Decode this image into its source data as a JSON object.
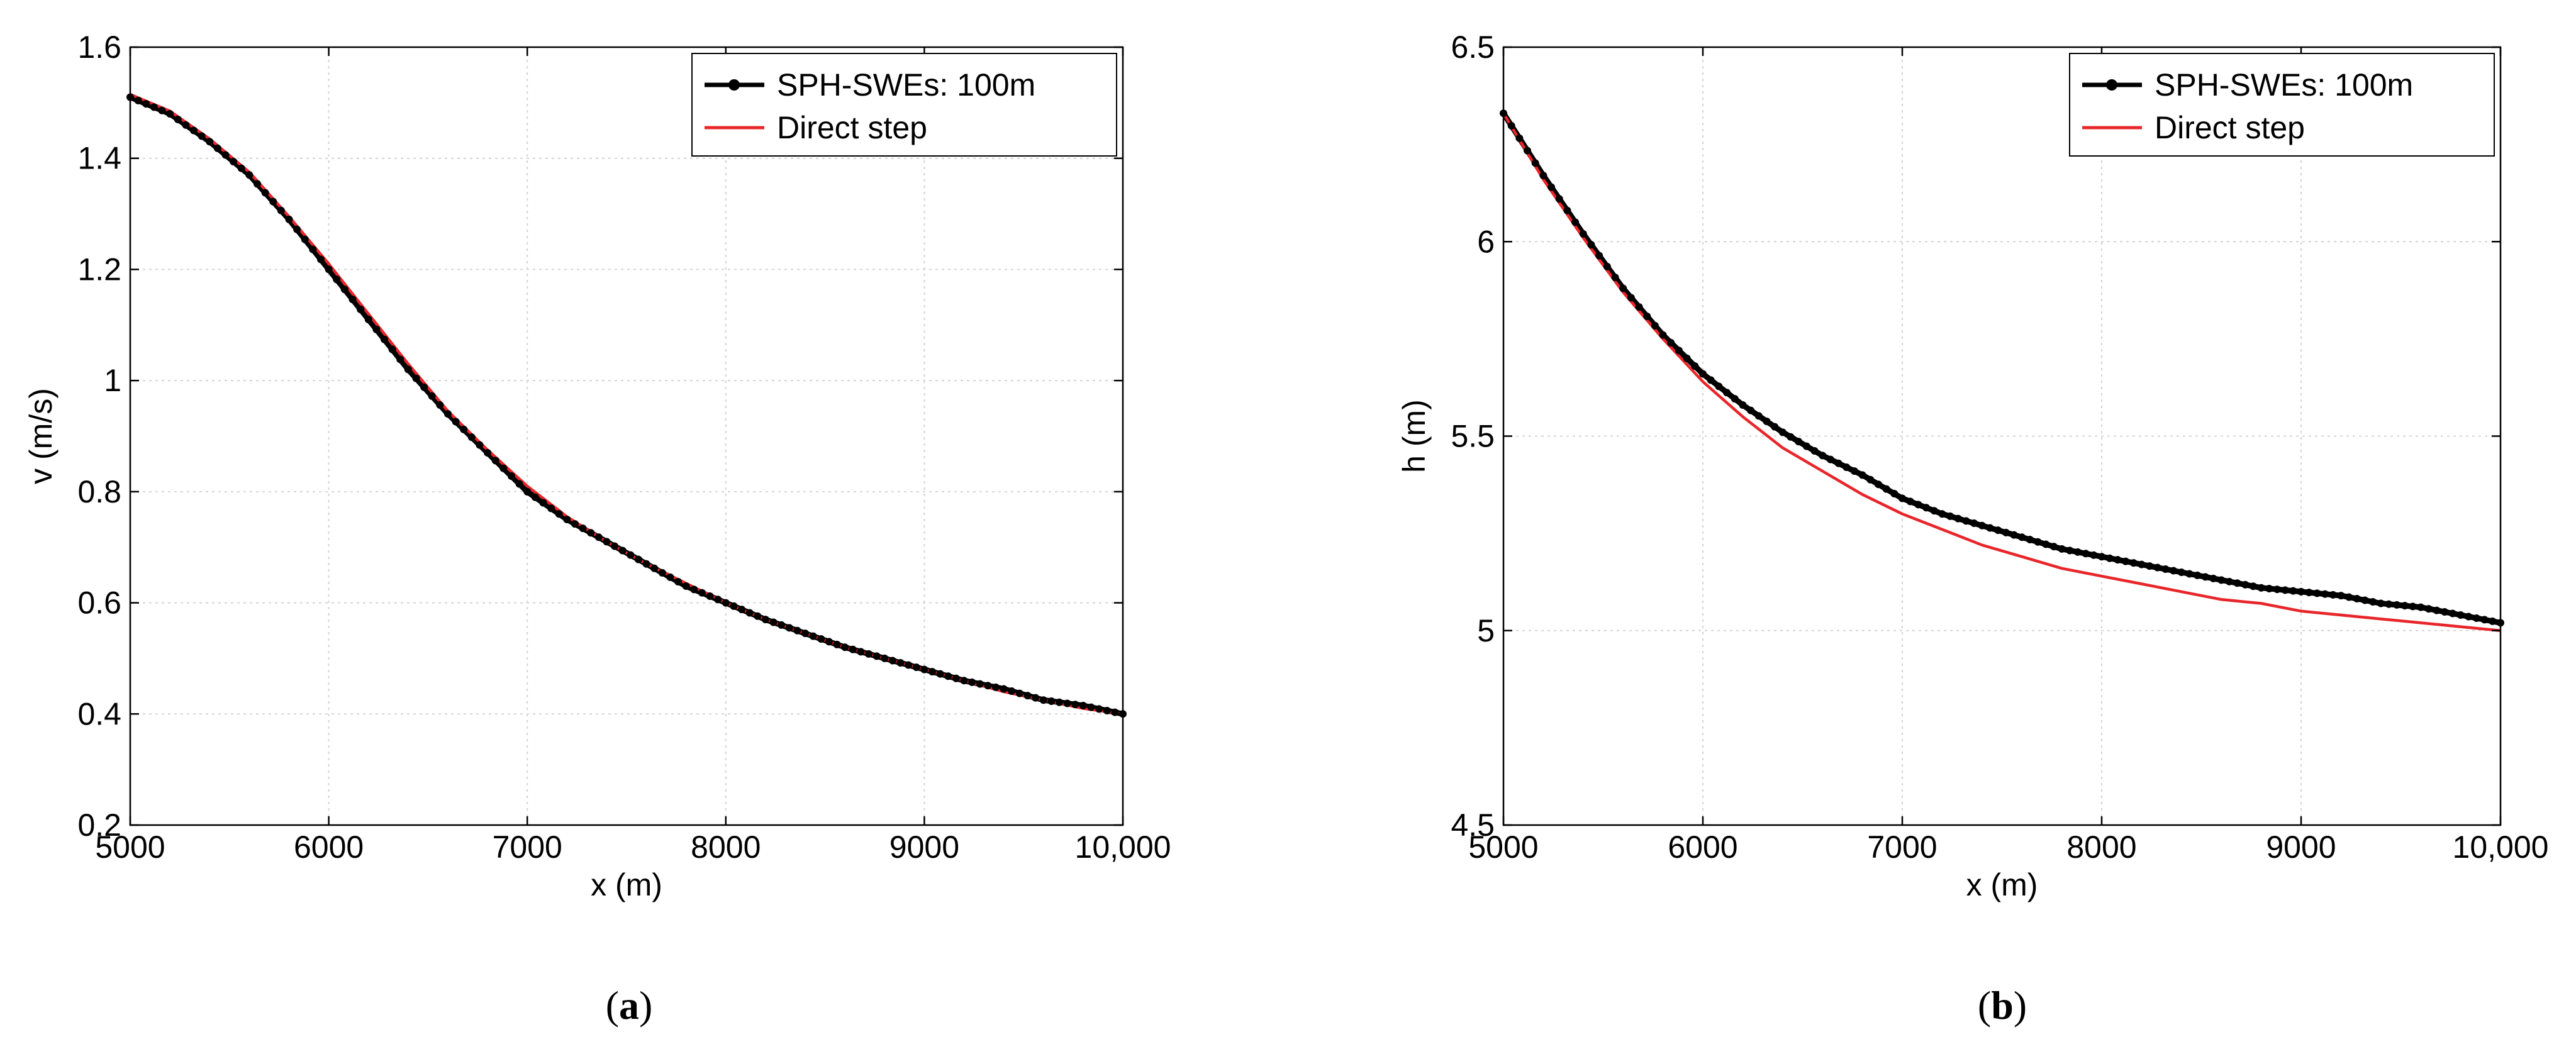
{
  "chart_data": [
    {
      "type": "line",
      "panel_label": "a",
      "xlabel": "x (m)",
      "ylabel": "v (m/s)",
      "xlim": [
        5000,
        10000
      ],
      "ylim": [
        0.2,
        1.6
      ],
      "xticks": [
        5000,
        6000,
        7000,
        8000,
        9000,
        10000
      ],
      "xtick_labels": [
        "5000",
        "6000",
        "7000",
        "8000",
        "9000",
        "10,000"
      ],
      "yticks": [
        0.2,
        0.4,
        0.6,
        0.8,
        1.0,
        1.2,
        1.4,
        1.6
      ],
      "ytick_labels": [
        "0.2",
        "0.4",
        "0.6",
        "0.8",
        "1",
        "1.2",
        "1.4",
        "1.6"
      ],
      "grid": true,
      "legend_position": "top-right",
      "series": [
        {
          "name": "SPH-SWEs: 100m",
          "color": "#000000",
          "marker": "dot",
          "x": [
            5000,
            5200,
            5400,
            5600,
            5800,
            6000,
            6200,
            6400,
            6600,
            6800,
            7000,
            7200,
            7400,
            7600,
            7800,
            8000,
            8200,
            8400,
            8600,
            8800,
            9000,
            9200,
            9400,
            9600,
            9800,
            10000
          ],
          "y": [
            1.51,
            1.48,
            1.43,
            1.37,
            1.29,
            1.2,
            1.11,
            1.02,
            0.94,
            0.87,
            0.8,
            0.75,
            0.71,
            0.67,
            0.63,
            0.6,
            0.57,
            0.545,
            0.52,
            0.5,
            0.48,
            0.46,
            0.445,
            0.425,
            0.415,
            0.4
          ]
        },
        {
          "name": "Direct step",
          "color": "#e8262a",
          "marker": "none",
          "x": [
            5000,
            5200,
            5400,
            5600,
            5800,
            6000,
            6200,
            6400,
            6600,
            6800,
            7000,
            7200,
            7400,
            7600,
            7800,
            8000,
            8200,
            8400,
            8600,
            8800,
            9000,
            9200,
            9400,
            9600,
            9800,
            10000
          ],
          "y": [
            1.515,
            1.485,
            1.435,
            1.375,
            1.295,
            1.21,
            1.12,
            1.03,
            0.945,
            0.875,
            0.81,
            0.755,
            0.71,
            0.67,
            0.635,
            0.6,
            0.57,
            0.545,
            0.52,
            0.5,
            0.48,
            0.46,
            0.44,
            0.425,
            0.41,
            0.4
          ]
        }
      ]
    },
    {
      "type": "line",
      "panel_label": "b",
      "xlabel": "x (m)",
      "ylabel": "h (m)",
      "xlim": [
        5000,
        10000
      ],
      "ylim": [
        4.5,
        6.5
      ],
      "xticks": [
        5000,
        6000,
        7000,
        8000,
        9000,
        10000
      ],
      "xtick_labels": [
        "5000",
        "6000",
        "7000",
        "8000",
        "9000",
        "10,000"
      ],
      "yticks": [
        4.5,
        5.0,
        5.5,
        6.0,
        6.5
      ],
      "ytick_labels": [
        "4.5",
        "5",
        "5.5",
        "6",
        "6.5"
      ],
      "grid": true,
      "legend_position": "top-right",
      "series": [
        {
          "name": "SPH-SWEs: 100m",
          "color": "#000000",
          "marker": "dot",
          "x": [
            5000,
            5200,
            5400,
            5600,
            5800,
            6000,
            6200,
            6400,
            6600,
            6800,
            7000,
            7200,
            7400,
            7600,
            7800,
            8000,
            8200,
            8400,
            8600,
            8800,
            9000,
            9200,
            9400,
            9600,
            9800,
            10000
          ],
          "y": [
            6.33,
            6.17,
            6.02,
            5.88,
            5.76,
            5.66,
            5.58,
            5.51,
            5.45,
            5.4,
            5.34,
            5.3,
            5.27,
            5.24,
            5.21,
            5.19,
            5.17,
            5.15,
            5.13,
            5.11,
            5.1,
            5.09,
            5.07,
            5.06,
            5.04,
            5.02
          ]
        },
        {
          "name": "Direct step",
          "color": "#e8262a",
          "marker": "none",
          "x": [
            5000,
            5200,
            5400,
            5600,
            5800,
            6000,
            6200,
            6400,
            6600,
            6800,
            7000,
            7200,
            7400,
            7600,
            7800,
            8000,
            8200,
            8400,
            8600,
            8800,
            9000,
            9200,
            9400,
            9600,
            9800,
            10000
          ],
          "y": [
            6.33,
            6.16,
            6.01,
            5.87,
            5.75,
            5.64,
            5.55,
            5.47,
            5.41,
            5.35,
            5.3,
            5.26,
            5.22,
            5.19,
            5.16,
            5.14,
            5.12,
            5.1,
            5.08,
            5.07,
            5.05,
            5.04,
            5.03,
            5.02,
            5.01,
            5.0
          ]
        }
      ]
    }
  ]
}
